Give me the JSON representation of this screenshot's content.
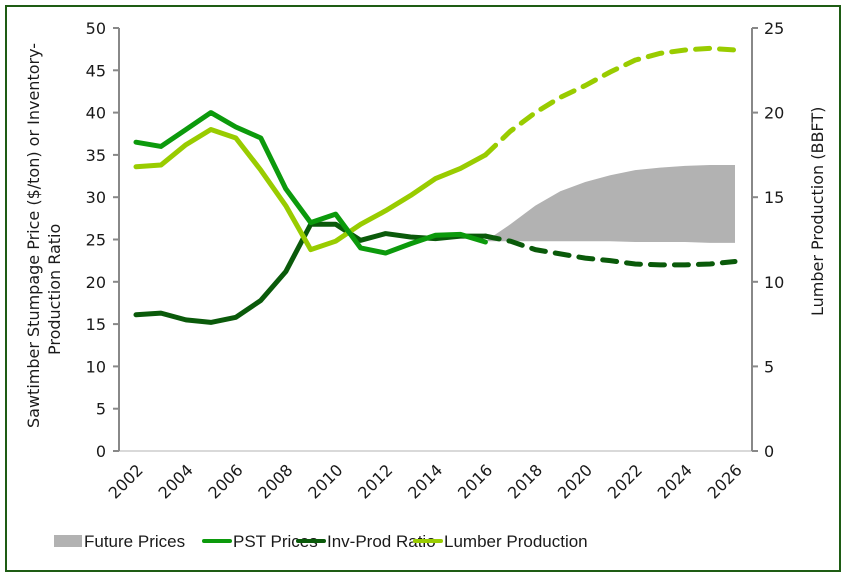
{
  "chart_data": {
    "type": "line",
    "title": "",
    "x": [
      2002,
      2003,
      2004,
      2005,
      2006,
      2007,
      2008,
      2009,
      2010,
      2011,
      2012,
      2013,
      2014,
      2015,
      2016,
      2017,
      2018,
      2019,
      2020,
      2021,
      2022,
      2023,
      2024,
      2025,
      2026
    ],
    "xticks": [
      "2002",
      "2004",
      "2006",
      "2008",
      "2010",
      "2012",
      "2014",
      "2016",
      "2018",
      "2020",
      "2022",
      "2024",
      "2026"
    ],
    "ylabel": "Sawtimber Stumpage Price ($/ton) or Inventory-Production Ratio",
    "ylabel_lines": [
      "Sawtimber Stumpage Price ($/ton) or Inventory-",
      "Production Ratio"
    ],
    "ylim": [
      0,
      50
    ],
    "yticks": [
      "0",
      "5",
      "10",
      "15",
      "20",
      "25",
      "30",
      "35",
      "40",
      "45",
      "50"
    ],
    "y2label": "Lumber Production (BBFT)",
    "y2lim": [
      0,
      25
    ],
    "y2ticks": [
      "0",
      "5",
      "10",
      "15",
      "20",
      "25"
    ],
    "grid": false,
    "legend_position": "bottom",
    "projection_start": 2016,
    "series": [
      {
        "name": "Future Prices",
        "type": "area-band",
        "axis": "left",
        "color": "#b2b2b2",
        "x": [
          2016,
          2017,
          2018,
          2019,
          2020,
          2021,
          2022,
          2023,
          2024,
          2025,
          2026
        ],
        "lower": [
          24.8,
          24.8,
          24.8,
          24.8,
          24.8,
          24.8,
          24.7,
          24.7,
          24.7,
          24.6,
          24.6
        ],
        "upper": [
          24.8,
          26.8,
          29.0,
          30.7,
          31.8,
          32.6,
          33.2,
          33.5,
          33.7,
          33.8,
          33.8
        ]
      },
      {
        "name": "PST Prices",
        "type": "line",
        "axis": "left",
        "color": "#0c9a0c",
        "values": [
          36.5,
          36.0,
          38.0,
          40.0,
          38.3,
          37.0,
          31.0,
          27.0,
          28.0,
          24.0,
          23.4,
          24.5,
          25.5,
          25.6,
          24.7,
          null,
          null,
          null,
          null,
          null,
          null,
          null,
          null,
          null,
          null
        ]
      },
      {
        "name": "Inv-Prod Ratio",
        "type": "line",
        "axis": "left",
        "color": "#0a5a0a",
        "values": [
          16.1,
          16.3,
          15.5,
          15.2,
          15.8,
          17.8,
          21.2,
          26.8,
          26.8,
          24.9,
          25.7,
          25.3,
          25.1,
          25.4,
          25.4,
          24.8,
          23.8,
          23.3,
          22.8,
          22.5,
          22.1,
          22.0,
          22.0,
          22.1,
          22.4
        ]
      },
      {
        "name": "Lumber Production",
        "type": "line",
        "axis": "right",
        "color": "#99cc00",
        "values": [
          16.8,
          16.9,
          18.1,
          19.0,
          18.5,
          16.6,
          14.5,
          11.9,
          12.4,
          13.4,
          14.2,
          15.1,
          16.1,
          16.7,
          17.5,
          18.9,
          20.0,
          20.9,
          21.6,
          22.4,
          23.1,
          23.5,
          23.7,
          23.8,
          23.7
        ]
      }
    ]
  }
}
